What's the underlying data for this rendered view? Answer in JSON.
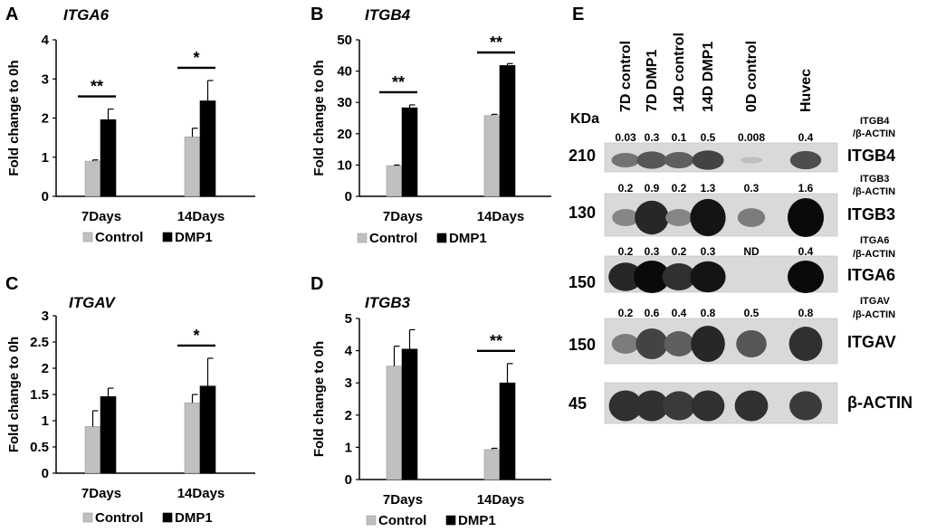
{
  "chart_data": [
    {
      "panel": "A",
      "type": "bar",
      "title": "ITGA6",
      "ylabel": "Fold change to 0h",
      "categories": [
        "7Days",
        "14Days"
      ],
      "ylim": [
        0,
        4
      ],
      "yticks": [
        "0",
        "1",
        "2",
        "3",
        "4"
      ],
      "series": [
        {
          "name": "Control",
          "values": [
            0.9,
            1.52
          ],
          "errors": [
            0.03,
            0.22
          ],
          "color": "#c0c0c0"
        },
        {
          "name": "DMP1",
          "values": [
            1.96,
            2.44
          ],
          "errors": [
            0.27,
            0.52
          ],
          "color": "#000000"
        }
      ],
      "significance": [
        "**",
        "*"
      ]
    },
    {
      "panel": "B",
      "type": "bar",
      "title": "ITGB4",
      "ylabel": "Fold change to 0h",
      "categories": [
        "7Days",
        "14Days"
      ],
      "ylim": [
        0,
        50
      ],
      "yticks": [
        "0",
        "10",
        "20",
        "30",
        "40",
        "50"
      ],
      "series": [
        {
          "name": "Control",
          "values": [
            9.8,
            25.8
          ],
          "errors": [
            0.2,
            0.4
          ],
          "color": "#c0c0c0"
        },
        {
          "name": "DMP1",
          "values": [
            28.3,
            41.8
          ],
          "errors": [
            0.9,
            0.6
          ],
          "color": "#000000"
        }
      ],
      "significance": [
        "**",
        "**"
      ]
    },
    {
      "panel": "C",
      "type": "bar",
      "title": "ITGAV",
      "ylabel": "Fold change to 0h",
      "categories": [
        "7Days",
        "14Days"
      ],
      "ylim": [
        0,
        3
      ],
      "yticks": [
        "0",
        "0.5",
        "1",
        "1.5",
        "2",
        "2.5",
        "3"
      ],
      "series": [
        {
          "name": "Control",
          "values": [
            0.89,
            1.34
          ],
          "errors": [
            0.3,
            0.16
          ],
          "color": "#c0c0c0"
        },
        {
          "name": "DMP1",
          "values": [
            1.46,
            1.66
          ],
          "errors": [
            0.16,
            0.53
          ],
          "color": "#000000"
        }
      ],
      "significance": [
        "",
        "*"
      ]
    },
    {
      "panel": "D",
      "type": "bar",
      "title": "ITGB3",
      "ylabel": "Fold change to 0h",
      "categories": [
        "7Days",
        "14Days"
      ],
      "ylim": [
        0,
        5
      ],
      "yticks": [
        "0",
        "1",
        "2",
        "3",
        "4",
        "5"
      ],
      "series": [
        {
          "name": "Control",
          "values": [
            3.52,
            0.93
          ],
          "errors": [
            0.62,
            0.04
          ],
          "color": "#c0c0c0"
        },
        {
          "name": "DMP1",
          "values": [
            4.05,
            3.0
          ],
          "errors": [
            0.6,
            0.6
          ],
          "color": "#000000"
        }
      ],
      "significance": [
        "",
        "**"
      ]
    }
  ],
  "western_blot": {
    "panel": "E",
    "kda_label": "KDa",
    "lanes": [
      "7D control",
      "7D DMP1",
      "14D control",
      "14D DMP1",
      "0D control",
      "Huvec"
    ],
    "bands": [
      {
        "kda": "210",
        "name": "ITGB4",
        "ratio_label_top": "ITGB4",
        "ratio_label_bottom": "/β-ACTIN",
        "ratios": [
          "0.03",
          "0.3",
          "0.1",
          "0.5",
          "0.008",
          "0.4"
        ],
        "intensity": [
          0.45,
          0.6,
          0.55,
          0.7,
          0.05,
          0.65
        ]
      },
      {
        "kda": "130",
        "name": "ITGB3",
        "ratio_label_top": "ITGB3",
        "ratio_label_bottom": "/β-ACTIN",
        "ratios": [
          "0.2",
          "0.9",
          "0.2",
          "1.3",
          "0.3",
          "1.6"
        ],
        "intensity": [
          0.35,
          0.85,
          0.35,
          0.95,
          0.4,
          1.0
        ]
      },
      {
        "kda": "150",
        "name": "ITGA6",
        "ratio_label_top": "ITGA6",
        "ratio_label_bottom": "/β-ACTIN",
        "ratios": [
          "0.2",
          "0.3",
          "0.2",
          "0.3",
          "ND",
          "0.4"
        ],
        "intensity": [
          0.85,
          1.0,
          0.8,
          0.95,
          0.0,
          1.0
        ]
      },
      {
        "kda": "150",
        "name": "ITGAV",
        "ratio_label_top": "ITGAV",
        "ratio_label_bottom": "/β-ACTIN",
        "ratios": [
          "0.2",
          "0.6",
          "0.4",
          "0.8",
          "0.5",
          "0.8"
        ],
        "intensity": [
          0.4,
          0.7,
          0.55,
          0.85,
          0.6,
          0.8
        ]
      },
      {
        "kda": "45",
        "name": "β-ACTIN",
        "ratio_label_top": "",
        "ratio_label_bottom": "",
        "ratios": [],
        "intensity": [
          0.8,
          0.8,
          0.75,
          0.8,
          0.8,
          0.75
        ]
      }
    ]
  }
}
